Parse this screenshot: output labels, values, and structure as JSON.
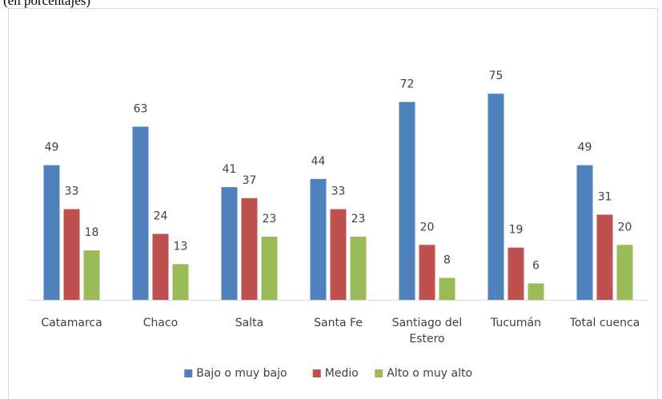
{
  "chart_data": {
    "type": "bar",
    "subtitle": "(en porcentajes)",
    "categories": [
      "Catamarca",
      "Chaco",
      "Salta",
      "Santa Fe",
      "Santiago del Estero",
      "Tucumán",
      "Total cuenca"
    ],
    "series": [
      {
        "name": "Bajo o muy bajo",
        "color": "#4f81bd",
        "values": [
          49,
          63,
          41,
          44,
          72,
          75,
          49
        ]
      },
      {
        "name": "Medio",
        "color": "#c0504d",
        "values": [
          33,
          24,
          37,
          33,
          20,
          19,
          31
        ]
      },
      {
        "name": "Alto o muy alto",
        "color": "#9bbb59",
        "values": [
          18,
          13,
          23,
          23,
          8,
          6,
          20
        ]
      }
    ],
    "ylim": [
      0,
      80
    ],
    "legend": "bottom"
  }
}
